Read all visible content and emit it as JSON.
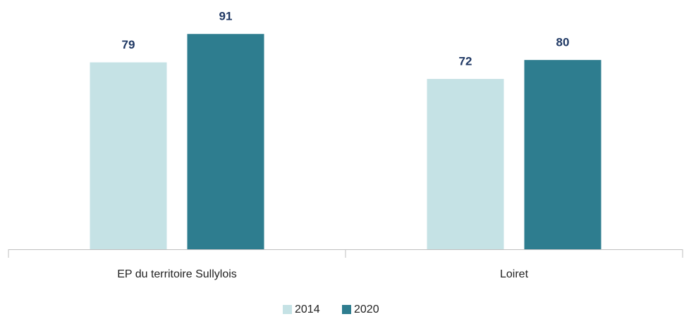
{
  "chart_data": {
    "type": "bar",
    "categories": [
      "EP du territoire Sullylois",
      "Loiret"
    ],
    "series": [
      {
        "name": "2014",
        "color": "#c5e2e5",
        "values": [
          79,
          72
        ]
      },
      {
        "name": "2020",
        "color": "#2e7d8f",
        "values": [
          91,
          80
        ]
      }
    ],
    "ylim": [
      0,
      100
    ],
    "legend": "bottom"
  }
}
